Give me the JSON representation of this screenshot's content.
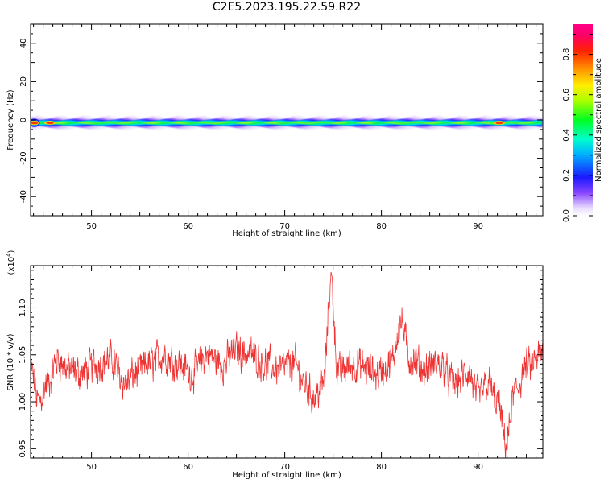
{
  "title": "C2E5.2023.195.22.59.R22",
  "chart_data": [
    {
      "type": "heatmap",
      "xlabel": "Height of straight line (km)",
      "ylabel": "Frequency (Hz)",
      "xlim": [
        43.7,
        96.7
      ],
      "ylim": [
        -50,
        50
      ],
      "xticks": [
        50,
        60,
        70,
        80,
        90
      ],
      "yticks": [
        -40,
        -20,
        0,
        20,
        40
      ],
      "colorbar": {
        "label": "Normalized spectral amplitude",
        "range": [
          0,
          0.95
        ],
        "ticks": [
          0.0,
          0.2,
          0.4,
          0.6,
          0.8
        ],
        "placement": "right"
      },
      "band": {
        "center_hz": -1.5,
        "half_width_hz_at_edge": 6.5,
        "hot_spots_km": [
          44.1,
          45.7,
          92.2
        ]
      }
    },
    {
      "type": "line",
      "xlabel": "Height of straight line (km)",
      "ylabel": "SNR (10 * v/v)",
      "multiplier": "(x10",
      "multiplier_exp": "4",
      "xlim": [
        43.7,
        96.7
      ],
      "ylim": [
        0.94,
        1.145
      ],
      "xticks": [
        50,
        60,
        70,
        80,
        90
      ],
      "yticks": [
        0.95,
        1.0,
        1.05,
        1.1
      ],
      "color": "#ee3333",
      "anchors": [
        [
          43.7,
          1.035
        ],
        [
          44.5,
          1.0
        ],
        [
          45.5,
          1.02
        ],
        [
          46.5,
          1.045
        ],
        [
          47.5,
          1.035
        ],
        [
          49.0,
          1.03
        ],
        [
          50.5,
          1.04
        ],
        [
          52.0,
          1.045
        ],
        [
          53.5,
          1.02
        ],
        [
          54.5,
          1.03
        ],
        [
          56.0,
          1.04
        ],
        [
          57.5,
          1.05
        ],
        [
          59.0,
          1.04
        ],
        [
          60.5,
          1.03
        ],
        [
          62.0,
          1.05
        ],
        [
          63.5,
          1.04
        ],
        [
          65.0,
          1.055
        ],
        [
          66.5,
          1.05
        ],
        [
          68.0,
          1.04
        ],
        [
          69.5,
          1.035
        ],
        [
          71.0,
          1.04
        ],
        [
          72.0,
          1.02
        ],
        [
          73.0,
          1.005
        ],
        [
          74.0,
          1.02
        ],
        [
          74.8,
          1.13
        ],
        [
          75.5,
          1.03
        ],
        [
          77.0,
          1.04
        ],
        [
          78.5,
          1.035
        ],
        [
          79.5,
          1.03
        ],
        [
          81.0,
          1.04
        ],
        [
          82.0,
          1.085
        ],
        [
          83.0,
          1.045
        ],
        [
          84.5,
          1.035
        ],
        [
          86.0,
          1.04
        ],
        [
          87.5,
          1.02
        ],
        [
          89.0,
          1.03
        ],
        [
          90.0,
          1.005
        ],
        [
          91.0,
          1.02
        ],
        [
          92.0,
          1.0
        ],
        [
          92.9,
          0.955
        ],
        [
          93.8,
          1.01
        ],
        [
          95.0,
          1.035
        ],
        [
          96.7,
          1.05
        ]
      ]
    }
  ]
}
